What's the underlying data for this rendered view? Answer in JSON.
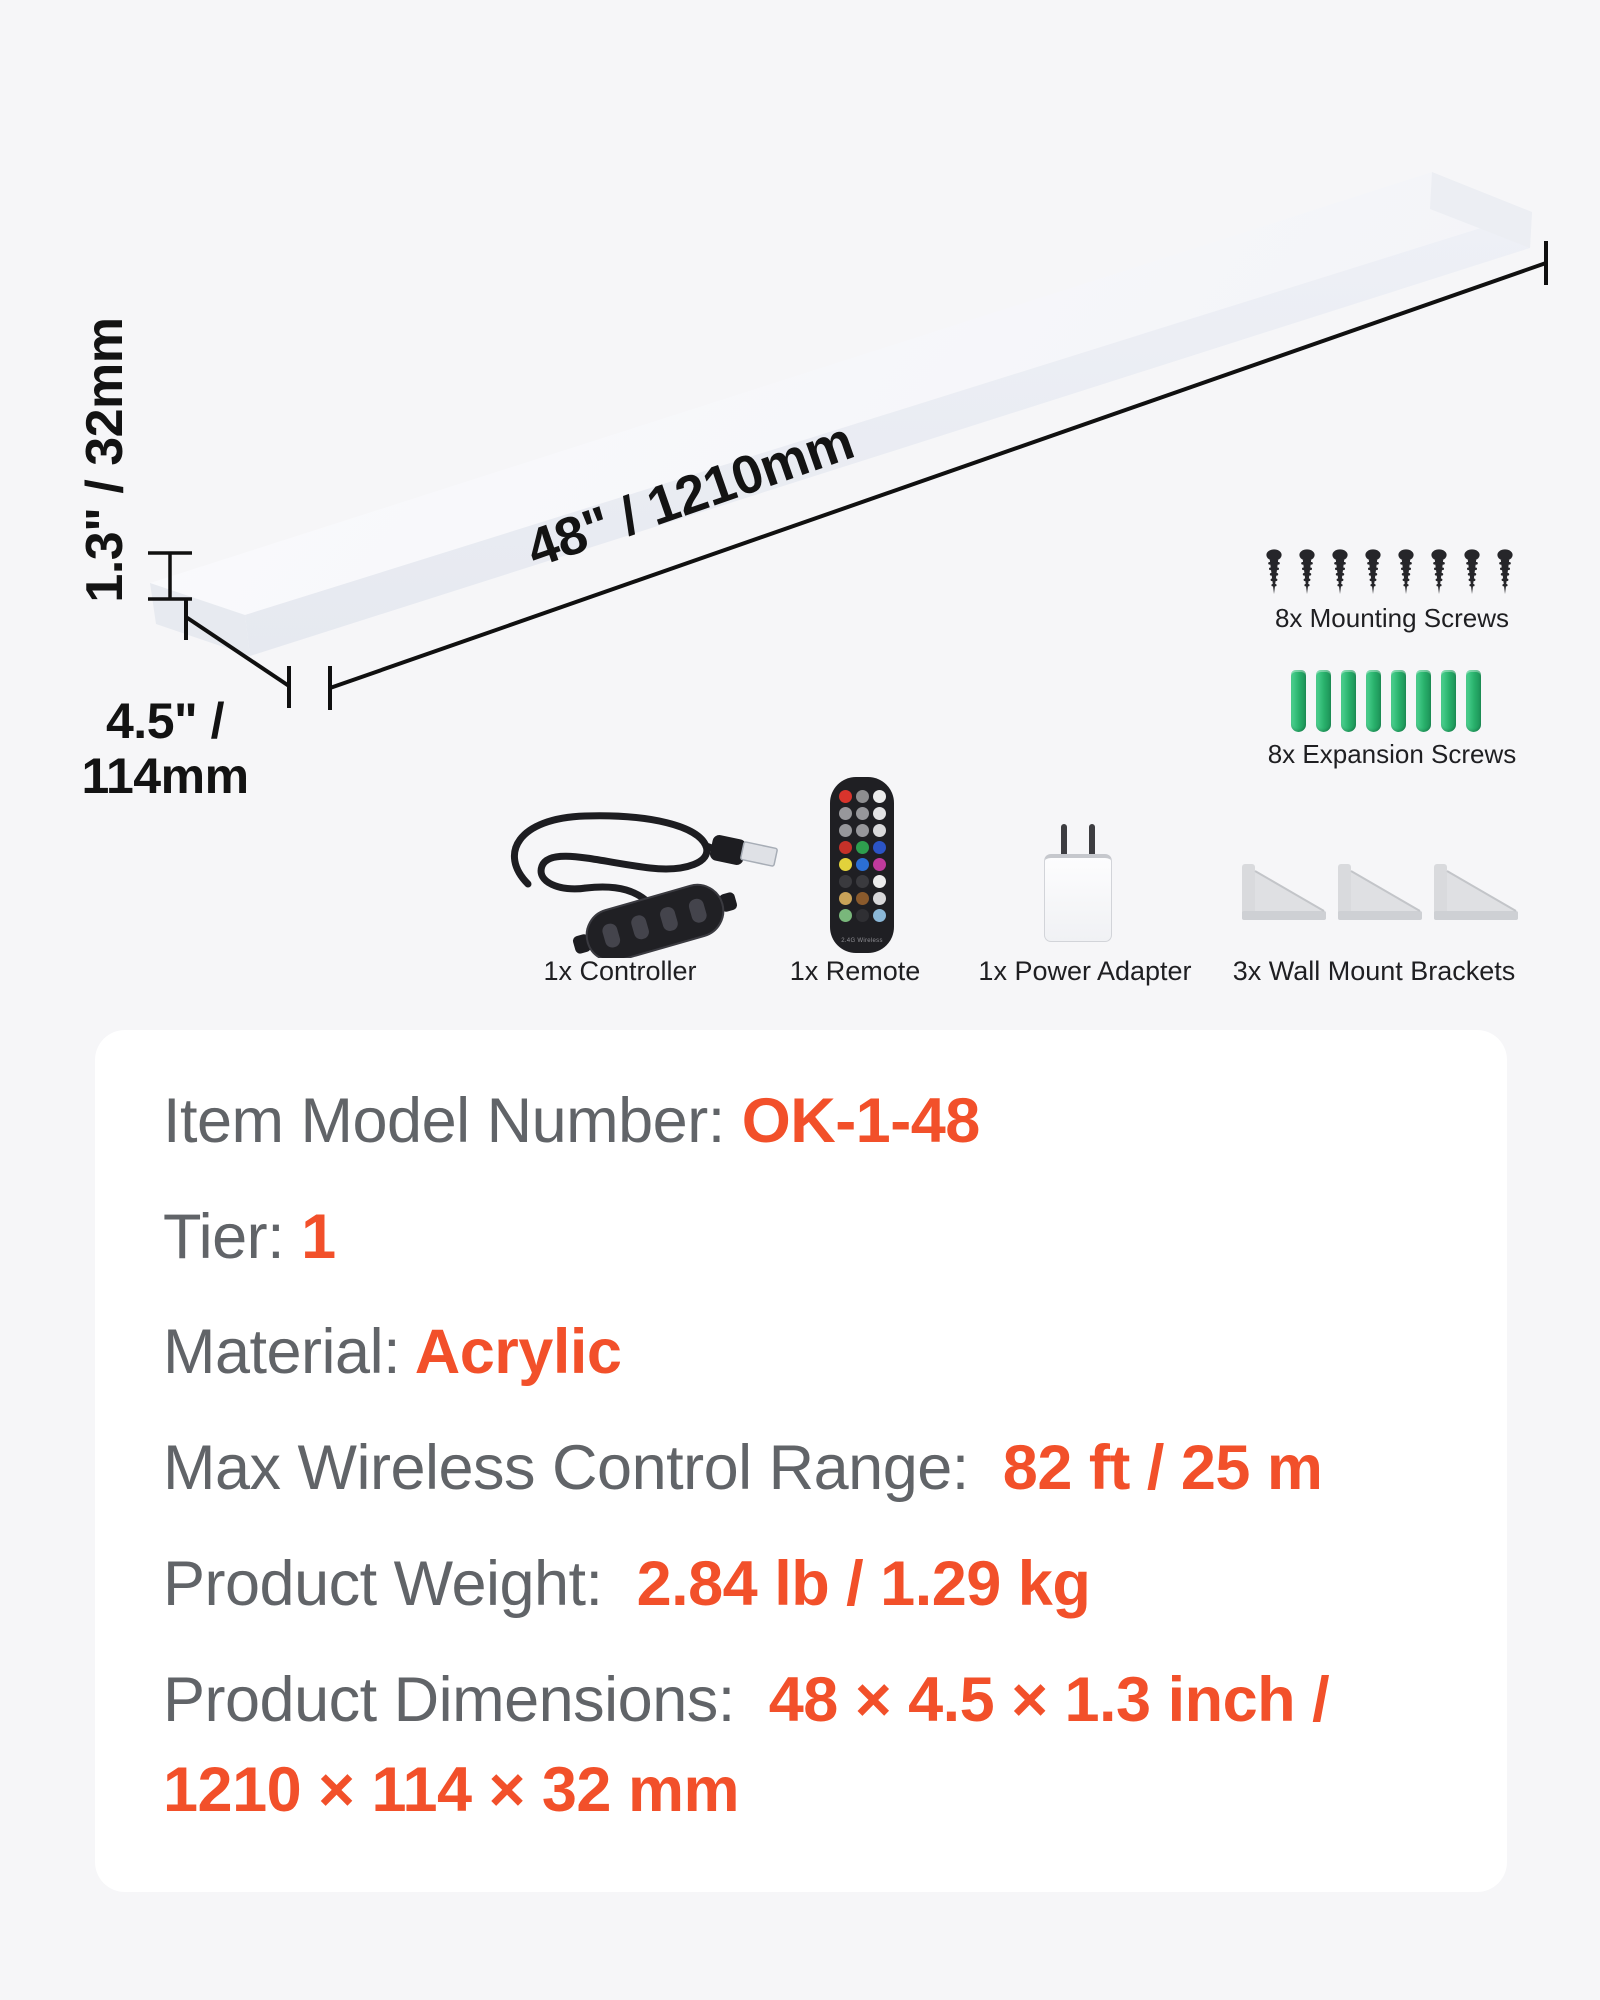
{
  "colors": {
    "page_bg": "#f6f6f8",
    "card_bg": "#ffffff",
    "accent_orange": "#f2502a",
    "label_gray": "#616468",
    "dimension_black": "#131313",
    "screw_black": "#26262a",
    "anchor_green": "#28b06b",
    "bracket_gray": "#d9dadd"
  },
  "dimensions": {
    "thickness": "1.3\" / 32mm",
    "length": "48\" / 1210mm",
    "depth": "4.5\" /\n114mm"
  },
  "hardware": {
    "mounting_screws": {
      "count": 8,
      "label": "8x Mounting Screws"
    },
    "expansion_screws": {
      "count": 8,
      "label": "8x Expansion Screws"
    }
  },
  "accessories": {
    "controller": {
      "label": "1x Controller"
    },
    "remote": {
      "label": "1x Remote",
      "brand_text": "2.4G Wireless",
      "button_colors": [
        "#d8342c",
        "#8e8e90",
        "#ececec",
        "#97979b",
        "#97979b",
        "#e3e3e5",
        "#97979b",
        "#97979b",
        "#d9d9db",
        "#c53129",
        "#2e9e4e",
        "#2b54c6",
        "#e2d23b",
        "#2b6fd3",
        "#bf3a9d",
        "#3a3a3e",
        "#3a3a3e",
        "#ececec",
        "#c9a258",
        "#8a5a2c",
        "#d8d8da",
        "#79b77b",
        "#2f2f33",
        "#8ab7d7"
      ]
    },
    "power_adapter": {
      "label": "1x Power Adapter"
    },
    "brackets": {
      "count": 3,
      "label": "3x Wall Mount Brackets"
    }
  },
  "specs": [
    {
      "label": "Item Model Number:",
      "value": " OK-1-48"
    },
    {
      "label": "Tier:",
      "value": " 1"
    },
    {
      "label": "Material:",
      "value": " Acrylic"
    },
    {
      "label": "Max Wireless Control Range:",
      "value": "  82 ft / 25 m"
    },
    {
      "label": "Product Weight:",
      "value": "  2.84 lb / 1.29 kg"
    },
    {
      "label": "Product Dimensions:",
      "value": "  48 × 4.5 × 1.3 inch /\n1210 × 114 × 32 mm"
    }
  ]
}
